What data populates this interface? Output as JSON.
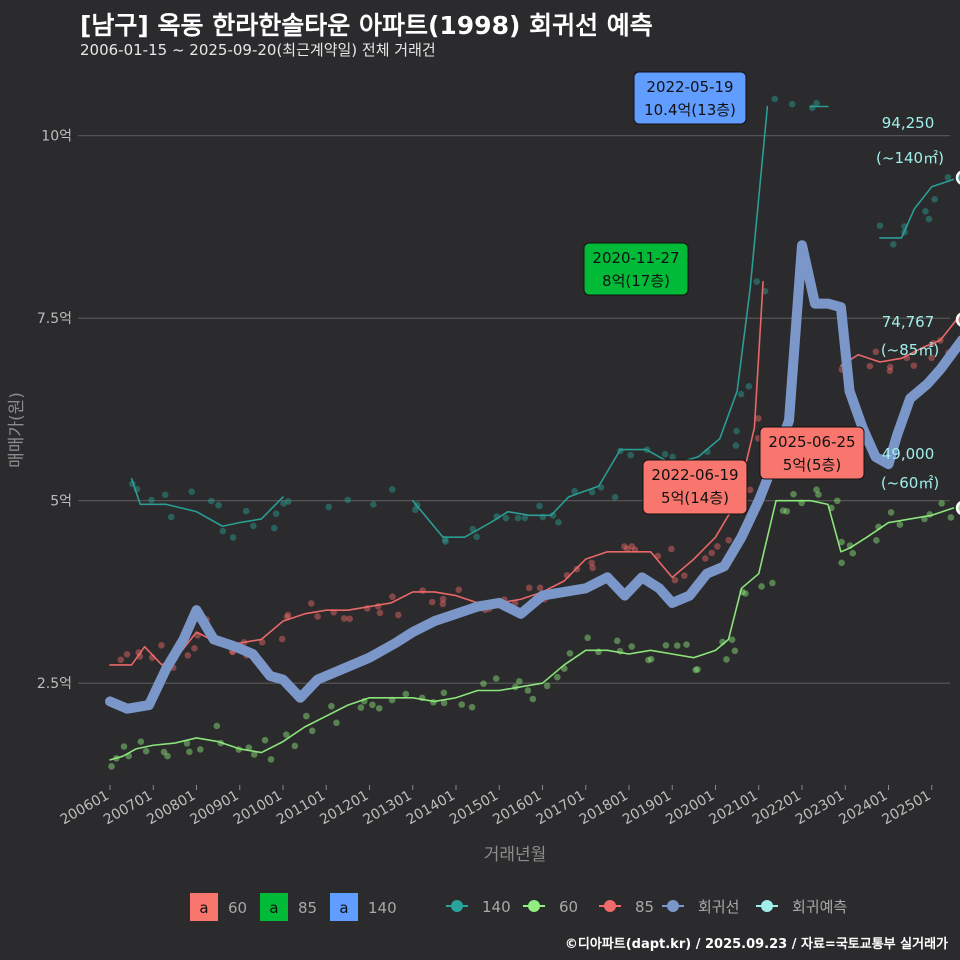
{
  "header": {
    "title": "[남구] 옥동 한라한솔타운 아파트(1998) 회귀선 예측",
    "subtitle": "2006-01-15 ~ 2025-09-20(최근계약일) 전체 거래건"
  },
  "credit": "©디아파트(dapt.kr) / 2025.09.23 / 자료=국토교통부 실거래가",
  "colors": {
    "background": "#2b2a2c",
    "grid": "#5a5a5a",
    "s60": "#90ee7f",
    "s85": "#f26b6b",
    "s140": "#2aa39a",
    "regression": "#7b97c9",
    "forecast": "#a0efea",
    "ann60": "#f8766d",
    "ann85": "#00ba38",
    "ann140": "#619cff"
  },
  "chart_data": {
    "type": "line",
    "xlabel": "거래년월",
    "ylabel": "매매가(원)",
    "x_range": [
      "2006-01",
      "2025-12"
    ],
    "ylim": [
      0.9,
      10.9
    ],
    "y_ticks": [
      2.5,
      5,
      7.5,
      10
    ],
    "y_tick_labels": [
      "2.5억",
      "5억",
      "7.5억",
      "10억"
    ],
    "x_tick_labels": [
      "200601",
      "200701",
      "200801",
      "200901",
      "201001",
      "201101",
      "201201",
      "201301",
      "201401",
      "201501",
      "201601",
      "201701",
      "201801",
      "201901",
      "202001",
      "202101",
      "202201",
      "202301",
      "202401",
      "202501"
    ],
    "series": [
      {
        "name": "60",
        "color": "#90ee7f",
        "values": [
          [
            2006.0,
            1.45
          ],
          [
            2006.3,
            1.5
          ],
          [
            2006.6,
            1.6
          ],
          [
            2007.0,
            1.65
          ],
          [
            2007.5,
            1.68
          ],
          [
            2008.0,
            1.75
          ],
          [
            2008.5,
            1.7
          ],
          [
            2009.0,
            1.6
          ],
          [
            2009.5,
            1.55
          ],
          [
            2010.0,
            1.7
          ],
          [
            2010.5,
            1.9
          ],
          [
            2011.0,
            2.05
          ],
          [
            2011.5,
            2.2
          ],
          [
            2012.0,
            2.3
          ],
          [
            2012.5,
            2.3
          ],
          [
            2013.0,
            2.3
          ],
          [
            2013.5,
            2.25
          ],
          [
            2014.0,
            2.3
          ],
          [
            2014.5,
            2.4
          ],
          [
            2015.0,
            2.4
          ],
          [
            2015.5,
            2.45
          ],
          [
            2016.0,
            2.5
          ],
          [
            2016.5,
            2.75
          ],
          [
            2017.0,
            2.95
          ],
          [
            2017.5,
            2.95
          ],
          [
            2018.0,
            2.9
          ],
          [
            2018.5,
            2.95
          ],
          [
            2019.0,
            2.9
          ],
          [
            2019.5,
            2.85
          ],
          [
            2020.0,
            2.95
          ],
          [
            2020.3,
            3.1
          ],
          [
            2020.6,
            3.8
          ],
          [
            2021.0,
            4.0
          ],
          [
            2021.4,
            5.0
          ],
          [
            2021.8,
            5.0
          ],
          [
            2022.2,
            5.0
          ],
          [
            2022.6,
            4.95
          ],
          [
            2022.9,
            4.3
          ],
          [
            2023.1,
            4.35
          ],
          [
            2023.5,
            4.5
          ],
          [
            2024.0,
            4.7
          ],
          [
            2024.5,
            4.75
          ],
          [
            2025.0,
            4.8
          ],
          [
            2025.5,
            4.9
          ]
        ]
      },
      {
        "name": "85",
        "color": "#f26b6b",
        "values": [
          [
            2006.0,
            2.75
          ],
          [
            2006.5,
            2.75
          ],
          [
            2006.8,
            3.0
          ],
          [
            2007.2,
            2.75
          ],
          [
            2007.6,
            2.9
          ],
          [
            2008.0,
            3.2
          ],
          [
            2008.5,
            3.05
          ],
          [
            2009.0,
            3.05
          ],
          [
            2009.5,
            3.1
          ],
          [
            2010.0,
            3.35
          ],
          [
            2010.5,
            3.45
          ],
          [
            2011.0,
            3.5
          ],
          [
            2011.5,
            3.5
          ],
          [
            2012.0,
            3.55
          ],
          [
            2012.5,
            3.6
          ],
          [
            2013.0,
            3.75
          ],
          [
            2013.5,
            3.75
          ],
          [
            2014.0,
            3.7
          ],
          [
            2014.5,
            3.6
          ],
          [
            2015.0,
            3.6
          ],
          [
            2015.5,
            3.65
          ],
          [
            2016.0,
            3.75
          ],
          [
            2016.5,
            3.9
          ],
          [
            2017.0,
            4.2
          ],
          [
            2017.5,
            4.3
          ],
          [
            2018.0,
            4.3
          ],
          [
            2018.5,
            4.3
          ],
          [
            2019.0,
            3.95
          ],
          [
            2019.5,
            4.2
          ],
          [
            2020.0,
            4.5
          ],
          [
            2020.5,
            5.0
          ],
          [
            2020.9,
            6.0
          ],
          [
            2021.1,
            8.0
          ],
          [
            2022.9,
            6.85
          ],
          [
            2023.3,
            7.0
          ],
          [
            2023.8,
            6.9
          ],
          [
            2024.3,
            6.95
          ],
          [
            2024.8,
            7.1
          ],
          [
            2025.2,
            7.2
          ],
          [
            2025.6,
            7.5
          ]
        ]
      },
      {
        "name": "140",
        "color": "#2aa39a",
        "values": [
          [
            2006.5,
            5.3
          ],
          [
            2006.7,
            4.95
          ],
          [
            2007.3,
            4.95
          ],
          [
            2008.0,
            4.85
          ],
          [
            2008.6,
            4.65
          ],
          [
            2009.0,
            4.7
          ],
          [
            2009.5,
            4.75
          ],
          [
            2010.0,
            5.05
          ],
          [
            2011.0,
            5.0
          ],
          [
            2012.0,
            5.0
          ],
          [
            2013.0,
            5.0
          ],
          [
            2013.7,
            4.5
          ],
          [
            2014.2,
            4.5
          ],
          [
            2014.8,
            4.7
          ],
          [
            2015.2,
            4.85
          ],
          [
            2015.7,
            4.8
          ],
          [
            2016.2,
            4.8
          ],
          [
            2016.6,
            5.05
          ],
          [
            2017.3,
            5.2
          ],
          [
            2017.8,
            5.7
          ],
          [
            2018.4,
            5.7
          ],
          [
            2019.0,
            5.5
          ],
          [
            2019.6,
            5.6
          ],
          [
            2020.1,
            5.85
          ],
          [
            2020.5,
            6.5
          ],
          [
            2020.8,
            7.9
          ],
          [
            2021.2,
            10.4
          ],
          [
            2022.2,
            10.4
          ],
          [
            2022.6,
            10.4
          ],
          [
            2023.8,
            8.6
          ],
          [
            2024.3,
            8.6
          ],
          [
            2024.6,
            9.0
          ],
          [
            2025.0,
            9.3
          ],
          [
            2025.5,
            9.4
          ]
        ]
      },
      {
        "name": "회귀선",
        "color": "#7b97c9",
        "values": [
          [
            2006.0,
            2.25
          ],
          [
            2006.4,
            2.15
          ],
          [
            2006.9,
            2.2
          ],
          [
            2007.3,
            2.7
          ],
          [
            2007.7,
            3.1
          ],
          [
            2008.0,
            3.5
          ],
          [
            2008.4,
            3.1
          ],
          [
            2008.9,
            3.0
          ],
          [
            2009.3,
            2.9
          ],
          [
            2009.7,
            2.6
          ],
          [
            2010.0,
            2.55
          ],
          [
            2010.4,
            2.3
          ],
          [
            2010.8,
            2.55
          ],
          [
            2011.4,
            2.7
          ],
          [
            2012.0,
            2.85
          ],
          [
            2012.6,
            3.05
          ],
          [
            2013.0,
            3.2
          ],
          [
            2013.5,
            3.35
          ],
          [
            2014.0,
            3.45
          ],
          [
            2014.5,
            3.55
          ],
          [
            2015.0,
            3.6
          ],
          [
            2015.5,
            3.45
          ],
          [
            2016.0,
            3.7
          ],
          [
            2016.5,
            3.75
          ],
          [
            2017.0,
            3.8
          ],
          [
            2017.5,
            3.95
          ],
          [
            2017.9,
            3.7
          ],
          [
            2018.3,
            3.95
          ],
          [
            2018.7,
            3.8
          ],
          [
            2019.0,
            3.6
          ],
          [
            2019.4,
            3.7
          ],
          [
            2019.8,
            4.0
          ],
          [
            2020.2,
            4.1
          ],
          [
            2020.6,
            4.5
          ],
          [
            2021.0,
            5.0
          ],
          [
            2021.4,
            5.6
          ],
          [
            2021.7,
            6.1
          ],
          [
            2022.0,
            8.5
          ],
          [
            2022.3,
            7.7
          ],
          [
            2022.6,
            7.7
          ],
          [
            2022.9,
            7.65
          ],
          [
            2023.1,
            6.5
          ],
          [
            2023.4,
            6.0
          ],
          [
            2023.7,
            5.6
          ],
          [
            2024.0,
            5.5
          ],
          [
            2024.2,
            5.9
          ],
          [
            2024.5,
            6.4
          ],
          [
            2024.9,
            6.6
          ],
          [
            2025.2,
            6.8
          ],
          [
            2025.7,
            7.2
          ]
        ]
      }
    ],
    "annotations": [
      {
        "date": "2022-05-19",
        "label": "10.4억(13층)",
        "group": "140"
      },
      {
        "date": "2020-11-27",
        "label": "8억(17층)",
        "group": "85"
      },
      {
        "date": "2022-06-19",
        "label": "5억(14층)",
        "group": "60"
      },
      {
        "date": "2025-06-25",
        "label": "5억(5층)",
        "group": "60"
      }
    ],
    "end_labels": [
      {
        "value": "94,250",
        "area": "(~140㎡)",
        "y": 9.425,
        "color": "#a0efea"
      },
      {
        "value": "74,767",
        "area": "(~85㎡)",
        "y": 7.4767,
        "color": "#a0efea"
      },
      {
        "value": "49,000",
        "area": "(~60㎡)",
        "y": 4.9,
        "color": "#a0efea"
      }
    ],
    "legend": {
      "position": "bottom",
      "fill_items": [
        {
          "label": "60",
          "key": "a",
          "color": "#f8766d"
        },
        {
          "label": "85",
          "key": "a",
          "color": "#00ba38"
        },
        {
          "label": "140",
          "key": "a",
          "color": "#619cff"
        }
      ],
      "line_items": [
        {
          "label": "140",
          "color": "#2aa39a"
        },
        {
          "label": "60",
          "color": "#90ee7f"
        },
        {
          "label": "85",
          "color": "#f26b6b"
        },
        {
          "label": "회귀선",
          "color": "#7b97c9"
        },
        {
          "label": "회귀예측",
          "color": "#a0efea"
        }
      ]
    }
  }
}
